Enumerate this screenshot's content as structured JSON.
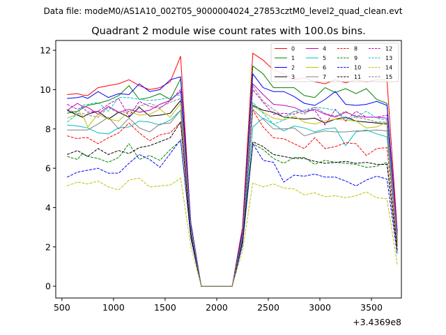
{
  "chart_data": {
    "type": "line",
    "suptitle": "Data file: modeM0/AS1A10_002T05_9000004024_27853cztM0_level2_quad_clean.evt",
    "title": "Quadrant 2 module wise count rates with 100.0s bins.",
    "xlabel": "",
    "ylabel": "",
    "x_offset_label": "+3.4369e8",
    "xlim": [
      440,
      3790
    ],
    "ylim": [
      -0.6,
      12.5
    ],
    "x_ticks": [
      500,
      1000,
      1500,
      2000,
      2500,
      3000,
      3500
    ],
    "x_tick_labels": [
      "500",
      "1000",
      "1500",
      "2000",
      "2500",
      "3000",
      "3500"
    ],
    "y_ticks": [
      0,
      2,
      4,
      6,
      8,
      10,
      12
    ],
    "y_tick_labels": [
      "0",
      "2",
      "4",
      "6",
      "8",
      "10",
      "12"
    ],
    "legend_position": "top-right",
    "x": [
      550,
      650,
      700,
      750,
      850,
      950,
      1050,
      1150,
      1250,
      1350,
      1450,
      1550,
      1650,
      1750,
      1850,
      1950,
      2050,
      2150,
      2250,
      2350,
      2450,
      2550,
      2650,
      2750,
      2850,
      2950,
      3050,
      3150,
      3250,
      3350,
      3450,
      3550,
      3650,
      3750
    ],
    "series": [
      {
        "name": "0",
        "color": "#ff0000",
        "dash": "solid",
        "values": [
          9.75,
          9.8,
          9.72,
          9.7,
          10.1,
          10.2,
          10.3,
          10.5,
          10.2,
          10.0,
          10.1,
          10.4,
          11.7,
          3.0,
          0.0,
          0.0,
          0.0,
          0.0,
          3.0,
          11.85,
          11.5,
          11.0,
          10.8,
          10.5,
          10.6,
          10.4,
          10.3,
          10.5,
          10.35,
          10.5,
          10.4,
          10.5,
          10.5,
          2.8
        ]
      },
      {
        "name": "1",
        "color": "#008000",
        "dash": "solid",
        "values": [
          8.8,
          8.9,
          9.05,
          9.2,
          9.3,
          9.45,
          9.7,
          10.2,
          9.5,
          9.6,
          9.8,
          9.5,
          10.55,
          3.0,
          0.0,
          0.0,
          0.0,
          0.0,
          2.5,
          11.2,
          10.8,
          10.1,
          10.1,
          10.1,
          9.7,
          9.6,
          10.1,
          9.85,
          10.05,
          9.8,
          10.05,
          9.5,
          9.3,
          2.5
        ]
      },
      {
        "name": "2",
        "color": "#0000ff",
        "dash": "solid",
        "values": [
          9.55,
          9.6,
          9.65,
          9.55,
          9.9,
          9.6,
          9.8,
          9.75,
          10.3,
          9.9,
          10.0,
          10.5,
          10.65,
          3.2,
          0.0,
          0.0,
          0.0,
          0.0,
          2.8,
          10.8,
          10.1,
          9.9,
          9.9,
          9.65,
          9.3,
          9.2,
          9.5,
          9.9,
          9.25,
          9.2,
          9.25,
          9.4,
          9.2,
          2.7
        ]
      },
      {
        "name": "3",
        "color": "#000000",
        "dash": "solid",
        "values": [
          8.95,
          8.7,
          8.6,
          8.75,
          8.9,
          8.5,
          8.85,
          8.6,
          9.1,
          8.65,
          8.7,
          8.8,
          9.45,
          2.9,
          0.0,
          0.0,
          0.0,
          0.0,
          2.5,
          9.2,
          8.95,
          8.85,
          8.6,
          8.55,
          8.5,
          8.55,
          8.3,
          8.5,
          8.6,
          8.4,
          8.35,
          8.3,
          8.25,
          2.3
        ]
      },
      {
        "name": "4",
        "color": "#bf00bf",
        "dash": "solid",
        "values": [
          8.95,
          9.3,
          9.15,
          9.1,
          8.75,
          9.15,
          8.85,
          9.0,
          8.85,
          8.95,
          9.25,
          9.45,
          9.9,
          3.0,
          0.0,
          0.0,
          0.0,
          0.0,
          2.6,
          10.3,
          9.75,
          9.25,
          9.2,
          9.1,
          8.85,
          9.0,
          8.75,
          8.6,
          8.85,
          8.65,
          8.6,
          8.6,
          8.55,
          2.6
        ]
      },
      {
        "name": "5",
        "color": "#00bfbf",
        "dash": "solid",
        "values": [
          8.2,
          8.15,
          8.1,
          8.05,
          7.8,
          7.75,
          8.05,
          8.1,
          8.4,
          8.35,
          8.2,
          8.45,
          8.95,
          2.7,
          0.0,
          0.0,
          0.0,
          0.0,
          2.3,
          8.1,
          8.55,
          8.25,
          7.9,
          8.15,
          8.05,
          7.85,
          8.0,
          8.05,
          7.15,
          7.85,
          7.95,
          7.75,
          7.6,
          2.2
        ]
      },
      {
        "name": "6",
        "color": "#bfbf00",
        "dash": "solid",
        "values": [
          8.55,
          8.75,
          8.7,
          8.1,
          8.75,
          8.5,
          8.4,
          8.9,
          8.7,
          8.75,
          9.0,
          8.6,
          9.3,
          2.8,
          0.0,
          0.0,
          0.0,
          0.0,
          2.4,
          9.15,
          8.85,
          8.55,
          8.45,
          8.65,
          8.35,
          8.25,
          8.4,
          8.5,
          8.45,
          8.4,
          8.05,
          8.1,
          8.35,
          2.1
        ]
      },
      {
        "name": "7",
        "color": "#808080",
        "dash": "solid",
        "values": [
          7.95,
          7.95,
          7.95,
          7.95,
          8.25,
          8.6,
          8.0,
          8.55,
          8.05,
          7.85,
          8.25,
          8.3,
          8.95,
          2.7,
          0.0,
          0.0,
          0.0,
          0.0,
          2.5,
          9.0,
          8.5,
          8.0,
          8.0,
          8.05,
          7.65,
          7.8,
          7.9,
          7.85,
          7.85,
          7.9,
          7.9,
          7.95,
          7.9,
          2.2
        ]
      },
      {
        "name": "8",
        "color": "#ff0000",
        "dash": "dashed",
        "values": [
          7.65,
          7.5,
          7.55,
          7.55,
          7.25,
          7.55,
          7.8,
          8.3,
          7.8,
          7.4,
          7.7,
          7.8,
          8.35,
          2.6,
          0.0,
          0.0,
          0.0,
          0.0,
          2.3,
          8.95,
          8.1,
          7.55,
          7.5,
          7.25,
          7.0,
          7.55,
          7.0,
          7.1,
          7.3,
          7.25,
          6.65,
          7.0,
          7.05,
          2.0
        ]
      },
      {
        "name": "9",
        "color": "#008000",
        "dash": "dashed",
        "values": [
          6.6,
          6.45,
          6.75,
          6.6,
          6.5,
          6.3,
          6.55,
          7.25,
          6.45,
          6.65,
          6.4,
          6.95,
          7.4,
          2.5,
          0.0,
          0.0,
          0.0,
          0.0,
          2.2,
          7.25,
          6.95,
          6.5,
          6.25,
          6.55,
          6.55,
          6.2,
          6.4,
          6.3,
          6.25,
          6.2,
          6.05,
          6.1,
          6.3,
          1.9
        ]
      },
      {
        "name": "10",
        "color": "#0000ff",
        "dash": "dashed",
        "values": [
          5.55,
          5.8,
          5.85,
          5.9,
          6.0,
          5.75,
          5.75,
          6.25,
          6.7,
          6.45,
          6.05,
          6.75,
          7.45,
          2.4,
          0.0,
          0.0,
          0.0,
          0.0,
          2.1,
          7.25,
          6.4,
          6.3,
          5.3,
          5.65,
          5.6,
          5.7,
          5.55,
          5.55,
          5.35,
          5.1,
          5.4,
          5.6,
          5.45,
          1.6
        ]
      },
      {
        "name": "11",
        "color": "#000000",
        "dash": "dashed",
        "values": [
          6.7,
          6.9,
          6.75,
          6.6,
          7.0,
          6.7,
          6.9,
          6.75,
          7.05,
          7.15,
          7.35,
          7.55,
          8.35,
          2.6,
          0.0,
          0.0,
          0.0,
          0.0,
          2.3,
          7.35,
          7.1,
          6.7,
          6.6,
          6.5,
          6.5,
          6.35,
          6.25,
          6.3,
          6.35,
          6.25,
          6.3,
          6.2,
          6.2,
          1.8
        ]
      },
      {
        "name": "12",
        "color": "#bf00bf",
        "dash": "dashed",
        "values": [
          9.25,
          9.0,
          9.1,
          8.85,
          8.9,
          9.25,
          9.55,
          8.65,
          9.4,
          9.15,
          9.05,
          9.45,
          10.0,
          3.0,
          0.0,
          0.0,
          0.0,
          0.0,
          2.6,
          10.0,
          9.35,
          8.75,
          8.8,
          8.75,
          8.95,
          8.95,
          8.2,
          9.0,
          8.4,
          8.9,
          8.6,
          8.6,
          8.7,
          2.5
        ]
      },
      {
        "name": "13",
        "color": "#00bfbf",
        "dash": "dashed",
        "values": [
          8.35,
          8.75,
          9.2,
          9.25,
          9.35,
          8.9,
          9.6,
          9.6,
          9.5,
          9.45,
          9.5,
          9.6,
          9.75,
          3.0,
          0.0,
          0.0,
          0.0,
          0.0,
          2.5,
          9.35,
          8.8,
          8.25,
          8.45,
          8.9,
          8.95,
          9.1,
          9.05,
          8.95,
          8.5,
          8.6,
          8.9,
          8.55,
          8.45,
          2.4
        ]
      },
      {
        "name": "14",
        "color": "#bfbf00",
        "dash": "dashed",
        "values": [
          5.1,
          5.3,
          5.25,
          5.2,
          5.35,
          5.05,
          4.9,
          5.4,
          5.5,
          5.05,
          5.1,
          5.15,
          5.5,
          2.0,
          0.0,
          0.0,
          0.0,
          0.0,
          1.8,
          5.25,
          5.05,
          5.2,
          5.0,
          4.95,
          4.65,
          4.75,
          4.55,
          4.6,
          4.5,
          4.6,
          4.8,
          4.5,
          4.45,
          1.1
        ]
      },
      {
        "name": "15",
        "color": "#808080",
        "dash": "dashed",
        "values": [
          9.0,
          8.8,
          8.8,
          8.7,
          8.6,
          9.1,
          8.8,
          8.9,
          9.15,
          9.3,
          9.1,
          9.35,
          9.55,
          3.0,
          0.0,
          0.0,
          0.0,
          0.0,
          2.6,
          10.2,
          9.4,
          9.0,
          8.6,
          8.9,
          8.75,
          9.1,
          8.8,
          8.65,
          8.9,
          8.6,
          8.5,
          8.35,
          8.35,
          2.5
        ]
      }
    ]
  }
}
